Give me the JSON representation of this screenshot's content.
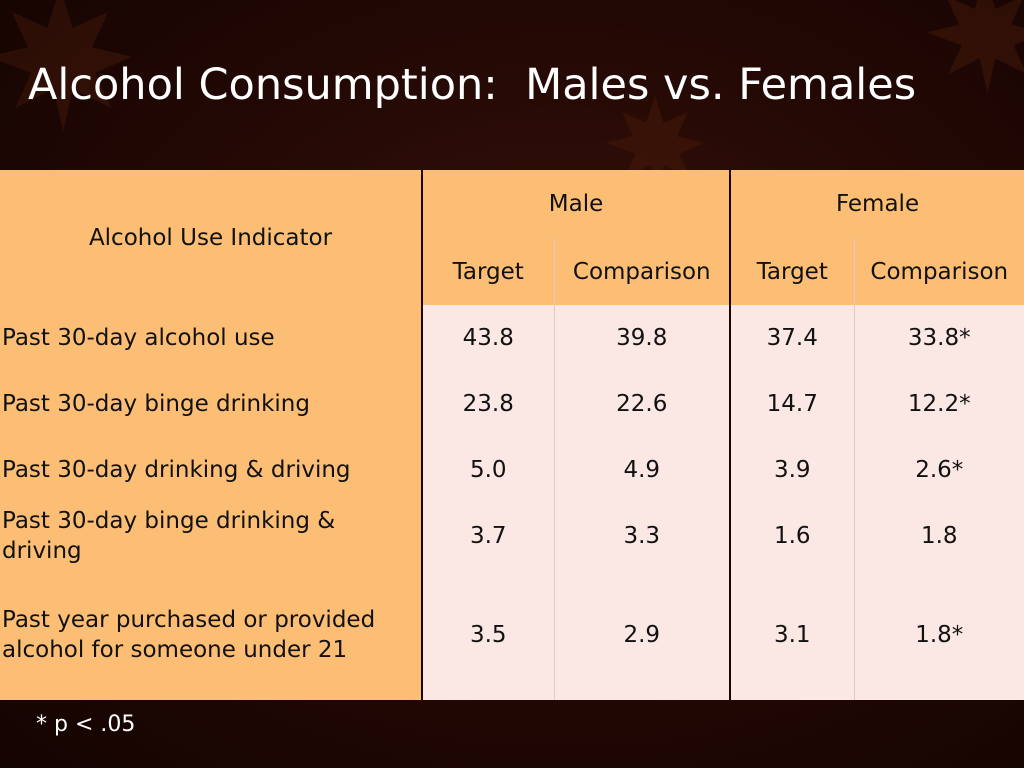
{
  "slide": {
    "title": "Alcohol Consumption:  Males vs. Females",
    "footnote": "* p < .05"
  },
  "chart_data": {
    "type": "table",
    "title": "Alcohol Consumption:  Males vs. Females",
    "row_header_label": "Alcohol Use Indicator",
    "column_groups": [
      {
        "name": "Male",
        "columns": [
          "Target",
          "Comparison"
        ]
      },
      {
        "name": "Female",
        "columns": [
          "Target",
          "Comparison"
        ]
      }
    ],
    "rows": [
      {
        "label": "Past 30-day alcohol use",
        "values": [
          "43.8",
          "39.8",
          "37.4",
          "33.8*"
        ]
      },
      {
        "label": "Past 30-day binge drinking",
        "values": [
          "23.8",
          "22.6",
          "14.7",
          "12.2*"
        ]
      },
      {
        "label": "Past 30-day drinking & driving",
        "values": [
          "5.0",
          "4.9",
          "3.9",
          "2.6*"
        ]
      },
      {
        "label": "Past 30-day binge drinking & driving",
        "values": [
          "3.7",
          "3.3",
          "1.6",
          "1.8"
        ]
      },
      {
        "label": "Past year purchased or provided alcohol for someone under 21",
        "values": [
          "3.5",
          "2.9",
          "3.1",
          "1.8*"
        ]
      }
    ],
    "footnote": "* p < .05"
  }
}
